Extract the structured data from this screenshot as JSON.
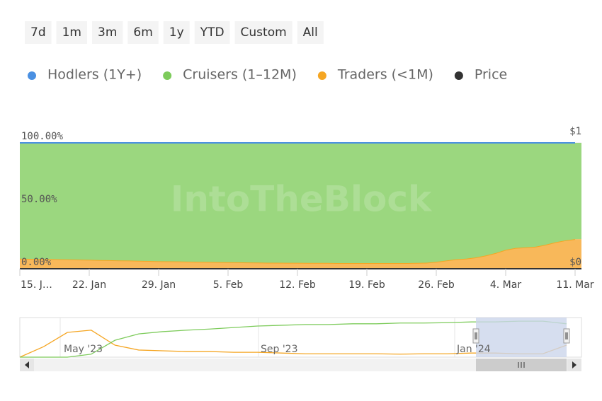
{
  "chart_data": {
    "type": "area",
    "range_buttons": [
      "7d",
      "1m",
      "3m",
      "6m",
      "1y",
      "YTD",
      "Custom",
      "All"
    ],
    "watermark": "IntoTheBlock",
    "categories": [
      "15. J…",
      null,
      null,
      null,
      null,
      null,
      null,
      "22. Jan",
      null,
      null,
      null,
      null,
      null,
      null,
      "29. Jan",
      null,
      null,
      null,
      null,
      null,
      null,
      "5. Feb",
      null,
      null,
      null,
      null,
      null,
      null,
      "12. Feb",
      null,
      null,
      null,
      null,
      null,
      null,
      "19. Feb",
      null,
      null,
      null,
      null,
      null,
      null,
      "26. Feb",
      null,
      null,
      null,
      null,
      null,
      null,
      "4. Mar",
      null,
      null,
      null,
      null,
      null,
      null,
      "11. Mar"
    ],
    "ylim": [
      0,
      100
    ],
    "yticks": [
      {
        "value": 0,
        "label": "0.00%"
      },
      {
        "value": 50,
        "label": "50.00%"
      },
      {
        "value": 100,
        "label": "100.00%"
      }
    ],
    "y2lim": [
      0,
      1
    ],
    "y2ticks": [
      {
        "value": 0,
        "label": "$0"
      },
      {
        "value": 1,
        "label": "$1"
      }
    ],
    "series": [
      {
        "name": "Hodlers (1Y+)",
        "color": "#4a90e2",
        "values": [
          0,
          0,
          0,
          0,
          0,
          0,
          0,
          0,
          0,
          0,
          0,
          0,
          0,
          0,
          0,
          0,
          0,
          0,
          0,
          0,
          0,
          0,
          0,
          0,
          0,
          0,
          0,
          0,
          0,
          0,
          0,
          0,
          0,
          0,
          0,
          0,
          0,
          0,
          0,
          0,
          0,
          0,
          0,
          0,
          0,
          0,
          0,
          0,
          0,
          0,
          0,
          0,
          0,
          0,
          0,
          0,
          0
        ]
      },
      {
        "name": "Cruisers (1–12M)",
        "color": "#7dcb5b",
        "fill": "#9bd77f",
        "values": [
          92,
          92.1,
          92.2,
          92.3,
          92.5,
          92.6,
          92.8,
          92.9,
          93.1,
          93.2,
          93.4,
          93.5,
          93.7,
          93.8,
          94,
          94.1,
          94.2,
          94.4,
          94.5,
          94.6,
          94.7,
          94.8,
          94.9,
          95,
          95.1,
          95.2,
          95.2,
          95.3,
          95.3,
          95.4,
          95.4,
          95.4,
          95.5,
          95.5,
          95.5,
          95.5,
          95.5,
          95.5,
          95.5,
          95.5,
          95.4,
          95.2,
          94.5,
          93.5,
          92.5,
          92,
          91,
          89.5,
          87.5,
          85,
          83.5,
          83,
          82.5,
          81,
          79,
          77.5,
          76.5
        ]
      },
      {
        "name": "Traders (<1M)",
        "color": "#f5a623",
        "fill": "#f8b85a",
        "values": [
          8,
          7.9,
          7.8,
          7.7,
          7.5,
          7.4,
          7.2,
          7.1,
          6.9,
          6.8,
          6.6,
          6.5,
          6.3,
          6.2,
          6,
          5.9,
          5.8,
          5.6,
          5.5,
          5.4,
          5.3,
          5.2,
          5.1,
          5,
          4.9,
          4.8,
          4.8,
          4.7,
          4.7,
          4.6,
          4.6,
          4.6,
          4.5,
          4.5,
          4.5,
          4.5,
          4.5,
          4.5,
          4.5,
          4.5,
          4.6,
          4.8,
          5.5,
          6.5,
          7.5,
          8,
          9,
          10.5,
          12.5,
          15,
          16.5,
          17,
          17.5,
          19,
          21,
          22.5,
          23.5
        ]
      },
      {
        "name": "Price",
        "color": "#333333",
        "axis": "y2",
        "values": [
          0,
          0,
          0,
          0,
          0,
          0,
          0,
          0,
          0,
          0,
          0,
          0,
          0,
          0,
          0,
          0,
          0,
          0,
          0,
          0,
          0,
          0,
          0,
          0,
          0,
          0,
          0,
          0,
          0,
          0,
          0,
          0,
          0,
          0,
          0,
          0,
          0,
          0,
          0,
          0,
          0,
          0,
          0,
          0,
          0,
          0,
          0,
          0,
          0,
          0,
          0,
          0,
          0,
          0,
          0,
          0,
          0
        ]
      }
    ],
    "navigator": {
      "labels": [
        "May '23",
        "Sep '23",
        "Jan '24"
      ],
      "ylim": [
        0,
        100
      ],
      "series": [
        {
          "color": "#f5a623",
          "values": [
            0,
            28,
            66,
            72,
            32,
            19,
            17,
            15,
            15,
            13,
            13,
            11,
            9,
            9,
            9,
            9,
            8,
            9,
            9,
            11,
            11,
            9,
            9,
            32
          ]
        },
        {
          "color": "#7dcb5b",
          "values": [
            0,
            0,
            0,
            8,
            45,
            62,
            68,
            72,
            75,
            79,
            83,
            85,
            87,
            87,
            89,
            89,
            91,
            91,
            92,
            94,
            94,
            96,
            96,
            89
          ]
        }
      ]
    }
  }
}
